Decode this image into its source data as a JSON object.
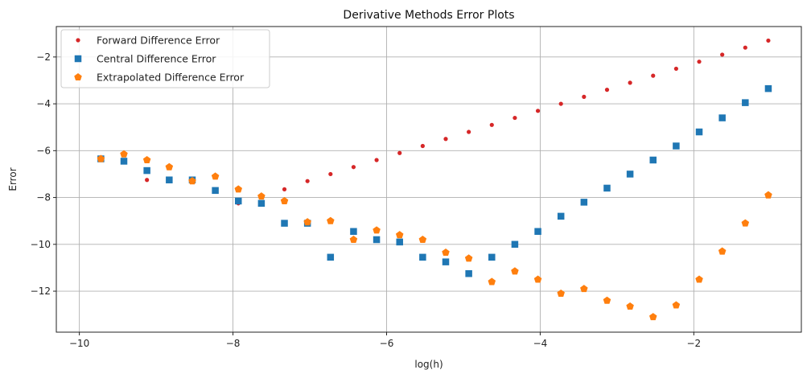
{
  "chart_data": {
    "type": "scatter",
    "title": "Derivative Methods Error Plots",
    "xlabel": "log(h)",
    "ylabel": "Error",
    "xlim": [
      -10.3,
      -0.6
    ],
    "ylim": [
      -13.75,
      -0.7
    ],
    "xticks": [
      -10,
      -8,
      -6,
      -4,
      -2
    ],
    "yticks": [
      -12,
      -10,
      -8,
      -6,
      -4,
      -2
    ],
    "xtick_labels": [
      "−10",
      "−8",
      "−6",
      "−4",
      "−2"
    ],
    "ytick_labels": [
      "−12",
      "−10",
      "−8",
      "−6",
      "−4",
      "−2"
    ],
    "grid": true,
    "legend_position": "top-left",
    "series": [
      {
        "name": "Forward Difference Error",
        "color": "#d62728",
        "marker": "circle",
        "points": [
          [
            -9.72,
            -6.35
          ],
          [
            -9.42,
            -6.45
          ],
          [
            -9.12,
            -7.25
          ],
          [
            -8.83,
            -7.25
          ],
          [
            -8.53,
            -7.3
          ],
          [
            -8.23,
            -7.7
          ],
          [
            -7.93,
            -8.25
          ],
          [
            -7.63,
            -8.25
          ],
          [
            -7.33,
            -7.65
          ],
          [
            -7.03,
            -7.3
          ],
          [
            -6.73,
            -7.0
          ],
          [
            -6.43,
            -6.7
          ],
          [
            -6.13,
            -6.4
          ],
          [
            -5.83,
            -6.1
          ],
          [
            -5.53,
            -5.8
          ],
          [
            -5.23,
            -5.5
          ],
          [
            -4.93,
            -5.2
          ],
          [
            -4.63,
            -4.9
          ],
          [
            -4.33,
            -4.6
          ],
          [
            -4.03,
            -4.3
          ],
          [
            -3.73,
            -4.0
          ],
          [
            -3.43,
            -3.7
          ],
          [
            -3.13,
            -3.4
          ],
          [
            -2.83,
            -3.1
          ],
          [
            -2.53,
            -2.8
          ],
          [
            -2.23,
            -2.5
          ],
          [
            -1.93,
            -2.2
          ],
          [
            -1.63,
            -1.9
          ],
          [
            -1.33,
            -1.6
          ],
          [
            -1.03,
            -1.3
          ]
        ]
      },
      {
        "name": "Central Difference Error",
        "color": "#1f77b4",
        "marker": "square",
        "points": [
          [
            -9.72,
            -6.35
          ],
          [
            -9.42,
            -6.45
          ],
          [
            -9.12,
            -6.85
          ],
          [
            -8.83,
            -7.25
          ],
          [
            -8.53,
            -7.25
          ],
          [
            -8.23,
            -7.7
          ],
          [
            -7.93,
            -8.15
          ],
          [
            -7.63,
            -8.25
          ],
          [
            -7.33,
            -9.1
          ],
          [
            -7.03,
            -9.1
          ],
          [
            -6.73,
            -10.55
          ],
          [
            -6.43,
            -9.45
          ],
          [
            -6.13,
            -9.8
          ],
          [
            -5.83,
            -9.9
          ],
          [
            -5.53,
            -10.55
          ],
          [
            -5.23,
            -10.75
          ],
          [
            -4.93,
            -11.25
          ],
          [
            -4.63,
            -10.55
          ],
          [
            -4.33,
            -10.0
          ],
          [
            -4.03,
            -9.45
          ],
          [
            -3.73,
            -8.8
          ],
          [
            -3.43,
            -8.2
          ],
          [
            -3.13,
            -7.6
          ],
          [
            -2.83,
            -7.0
          ],
          [
            -2.53,
            -6.4
          ],
          [
            -2.23,
            -5.8
          ],
          [
            -1.93,
            -5.2
          ],
          [
            -1.63,
            -4.6
          ],
          [
            -1.33,
            -3.95
          ],
          [
            -1.03,
            -3.35
          ]
        ]
      },
      {
        "name": "Extrapolated Difference Error",
        "color": "#ff7f0e",
        "marker": "pentagon",
        "points": [
          [
            -9.72,
            -6.35
          ],
          [
            -9.42,
            -6.15
          ],
          [
            -9.12,
            -6.4
          ],
          [
            -8.83,
            -6.7
          ],
          [
            -8.53,
            -7.3
          ],
          [
            -8.23,
            -7.1
          ],
          [
            -7.93,
            -7.65
          ],
          [
            -7.63,
            -7.95
          ],
          [
            -7.33,
            -8.15
          ],
          [
            -7.03,
            -9.05
          ],
          [
            -6.73,
            -9.0
          ],
          [
            -6.43,
            -9.8
          ],
          [
            -6.13,
            -9.4
          ],
          [
            -5.83,
            -9.6
          ],
          [
            -5.53,
            -9.8
          ],
          [
            -5.23,
            -10.35
          ],
          [
            -4.93,
            -10.6
          ],
          [
            -4.63,
            -11.6
          ],
          [
            -4.33,
            -11.15
          ],
          [
            -4.03,
            -11.5
          ],
          [
            -3.73,
            -12.1
          ],
          [
            -3.43,
            -11.9
          ],
          [
            -3.13,
            -12.4
          ],
          [
            -2.83,
            -12.65
          ],
          [
            -2.53,
            -13.1
          ],
          [
            -2.23,
            -12.6
          ],
          [
            -1.93,
            -11.5
          ],
          [
            -1.63,
            -10.3
          ],
          [
            -1.33,
            -9.1
          ],
          [
            -1.03,
            -7.9
          ]
        ]
      }
    ]
  }
}
